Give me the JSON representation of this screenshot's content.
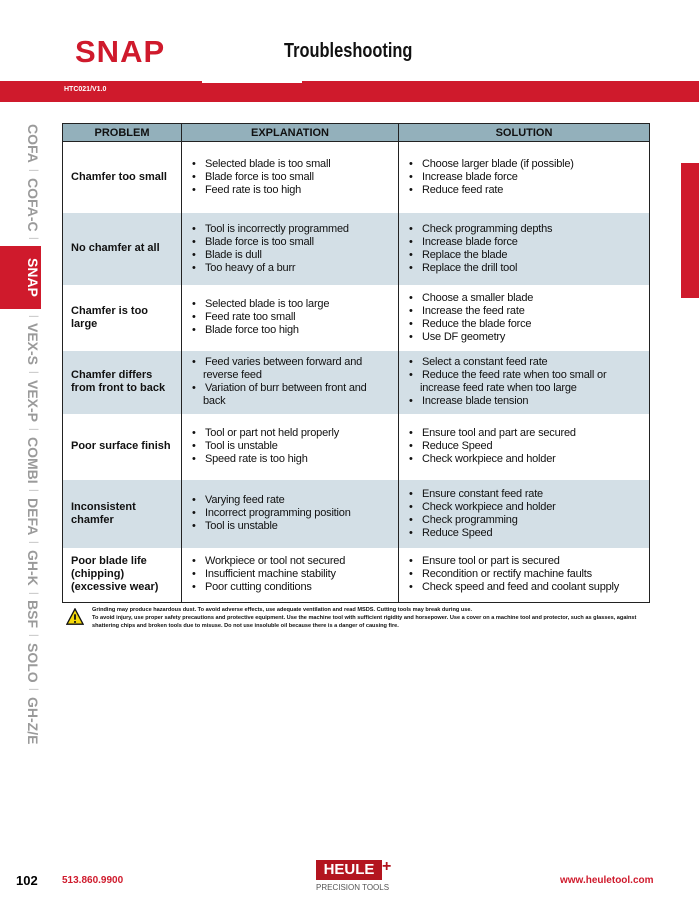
{
  "header": {
    "brand": "SNAP",
    "title": "Troubleshooting",
    "code": "HTC021/V1.0"
  },
  "sidebar": {
    "items": [
      "COFA",
      "COFA-C",
      "SNAP",
      "VEX-S",
      "VEX-P",
      "COMBI",
      "DEFA",
      "GH-K",
      "BSF",
      "SOLO",
      "GH-Z/E"
    ],
    "active": "SNAP",
    "separator": "|"
  },
  "table": {
    "headers": [
      "PROBLEM",
      "EXPLANATION",
      "SOLUTION"
    ],
    "rows": [
      {
        "problem": "Chamfer too small",
        "explanation": [
          "Selected blade is too small",
          "Blade force is too small",
          "Feed rate is too high"
        ],
        "solution": [
          "Choose larger blade (if possible)",
          "Increase blade force",
          "Reduce feed rate"
        ]
      },
      {
        "problem": "No chamfer at all",
        "explanation": [
          "Tool is incorrectly programmed",
          "Blade force is too small",
          "Blade is dull",
          "Too heavy of a burr"
        ],
        "solution": [
          "Check programming depths",
          "Increase blade force",
          "Replace the blade",
          "Replace the drill tool"
        ]
      },
      {
        "problem": "Chamfer is too large",
        "explanation": [
          "Selected blade is too large",
          "Feed rate too small",
          "Blade force too high"
        ],
        "solution": [
          "Choose a smaller blade",
          "Increase the feed rate",
          "Reduce the blade force",
          "Use DF geometry"
        ]
      },
      {
        "problem": "Chamfer differs from front to back",
        "explanation": [
          "Feed varies between forward and reverse feed",
          "Variation of burr between front and back"
        ],
        "solution": [
          "Select a constant feed rate",
          "Reduce the feed rate when too small or increase feed rate when too large",
          "Increase blade tension"
        ]
      },
      {
        "problem": "Poor surface finish",
        "explanation": [
          "Tool or part not held properly",
          "Tool is unstable",
          "Speed rate is too high"
        ],
        "solution": [
          "Ensure tool and part are secured",
          "Reduce Speed",
          "Check workpiece and holder"
        ]
      },
      {
        "problem": "Inconsistent chamfer",
        "explanation": [
          "Varying feed rate",
          "Incorrect programming position",
          "Tool is unstable"
        ],
        "solution": [
          "Ensure constant feed rate",
          "Check workpiece and holder",
          "Check programming",
          "Reduce Speed"
        ]
      },
      {
        "problem": "Poor blade life (chipping) (excessive wear)",
        "explanation": [
          "Workpiece or tool not secured",
          "Insufficient machine stability",
          "Poor cutting conditions"
        ],
        "solution": [
          "Ensure tool or part is secured",
          "Recondition or rectify machine faults",
          "Check speed and feed and coolant supply"
        ]
      }
    ]
  },
  "warning": {
    "icon": "warning-triangle-icon",
    "line1": "Grinding may produce hazardous dust. To avoid adverse effects, use adequate ventilation and read MSDS. Cutting tools may break during use.",
    "line2": "To avoid injury, use proper safety precautions and protective equipment. Use the machine tool with sufficient rigidity and horsepower. Use a cover on a machine tool and protector, such as glasses, against shattering chips and broken tools due to misuse. Do not use insoluble oil because there is a danger of causing fire."
  },
  "footer": {
    "page": "102",
    "phone": "513.860.9900",
    "website": "www.heuletool.com",
    "logo_text": "HEULE",
    "logo_sub": "PRECISION TOOLS"
  },
  "colors": {
    "brand_red": "#cf1a2c",
    "header_blue": "#93b0bb",
    "row_blue": "#d3dfe6"
  }
}
